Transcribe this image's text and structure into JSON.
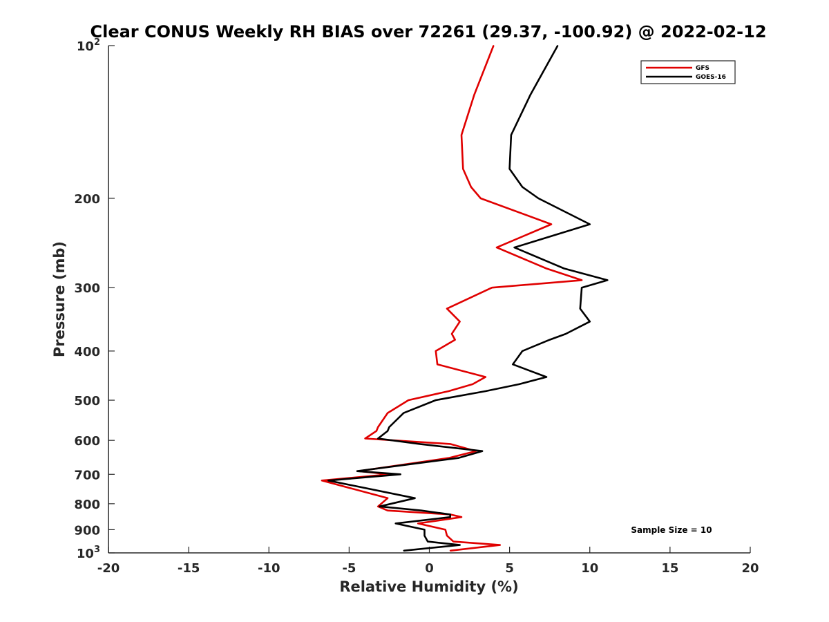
{
  "chart_data": {
    "type": "line",
    "title": "Clear CONUS Weekly RH BIAS over 72261 (29.37, -100.92) @ 2022-02-12",
    "xlabel": "Relative Humidity (%)",
    "ylabel": "Pressure (mb)",
    "xlim": [
      -20,
      20
    ],
    "ylim": [
      100,
      1000
    ],
    "y_scale": "log",
    "y_reversed": true,
    "xticks": [
      -20,
      -15,
      -10,
      -5,
      0,
      5,
      10,
      15,
      20
    ],
    "xtick_labels": [
      "-20",
      "-15",
      "-10",
      "-5",
      "0",
      "5",
      "10",
      "15",
      "20"
    ],
    "yticks": [
      200,
      300,
      400,
      500,
      600,
      700,
      800,
      900
    ],
    "ytick_labels": [
      "200",
      "300",
      "400",
      "500",
      "600",
      "700",
      "800",
      "900"
    ],
    "ytick_top": {
      "base": "10",
      "exp": "2"
    },
    "ytick_bottom": {
      "base": "10",
      "exp": "3"
    },
    "grid": false,
    "legend_position": "top-right",
    "annotation": "Sample Size = 10",
    "series": [
      {
        "name": "GFS",
        "color": "#e00000",
        "points": [
          [
            4.0,
            100
          ],
          [
            2.8,
            125
          ],
          [
            2.0,
            150
          ],
          [
            2.1,
            175
          ],
          [
            2.6,
            190
          ],
          [
            3.2,
            200
          ],
          [
            7.6,
            225
          ],
          [
            4.2,
            250
          ],
          [
            7.3,
            275
          ],
          [
            9.5,
            290
          ],
          [
            3.9,
            300
          ],
          [
            1.1,
            330
          ],
          [
            1.9,
            350
          ],
          [
            1.4,
            370
          ],
          [
            1.6,
            380
          ],
          [
            0.4,
            400
          ],
          [
            0.5,
            425
          ],
          [
            3.5,
            450
          ],
          [
            2.7,
            465
          ],
          [
            1.2,
            480
          ],
          [
            -1.3,
            500
          ],
          [
            -2.6,
            530
          ],
          [
            -3.2,
            565
          ],
          [
            -3.3,
            575
          ],
          [
            -4.0,
            595
          ],
          [
            1.3,
            610
          ],
          [
            2.9,
            630
          ],
          [
            1.2,
            650
          ],
          [
            -4.4,
            690
          ],
          [
            -2.5,
            700
          ],
          [
            -6.7,
            720
          ],
          [
            -2.6,
            780
          ],
          [
            -3.2,
            810
          ],
          [
            -2.6,
            825
          ],
          [
            1.3,
            840
          ],
          [
            2.0,
            850
          ],
          [
            -0.7,
            875
          ],
          [
            1.0,
            900
          ],
          [
            1.1,
            925
          ],
          [
            1.5,
            950
          ],
          [
            4.4,
            965
          ],
          [
            1.3,
            990
          ]
        ]
      },
      {
        "name": "GOES-16",
        "color": "#000000",
        "points": [
          [
            8.0,
            100
          ],
          [
            6.3,
            125
          ],
          [
            5.1,
            150
          ],
          [
            5.0,
            175
          ],
          [
            5.8,
            190
          ],
          [
            6.8,
            200
          ],
          [
            10.0,
            225
          ],
          [
            5.3,
            250
          ],
          [
            8.4,
            275
          ],
          [
            11.1,
            290
          ],
          [
            9.5,
            300
          ],
          [
            9.4,
            330
          ],
          [
            10.0,
            350
          ],
          [
            8.5,
            370
          ],
          [
            7.5,
            380
          ],
          [
            5.8,
            400
          ],
          [
            5.2,
            425
          ],
          [
            7.3,
            450
          ],
          [
            5.6,
            465
          ],
          [
            3.5,
            480
          ],
          [
            0.4,
            500
          ],
          [
            -1.6,
            530
          ],
          [
            -2.5,
            565
          ],
          [
            -2.6,
            575
          ],
          [
            -3.2,
            595
          ],
          [
            -0.6,
            610
          ],
          [
            3.3,
            630
          ],
          [
            1.8,
            650
          ],
          [
            -4.5,
            690
          ],
          [
            -1.8,
            700
          ],
          [
            -6.3,
            720
          ],
          [
            -0.9,
            780
          ],
          [
            -3.1,
            810
          ],
          [
            -0.5,
            825
          ],
          [
            1.3,
            840
          ],
          [
            1.3,
            850
          ],
          [
            -2.1,
            875
          ],
          [
            -0.3,
            900
          ],
          [
            -0.3,
            925
          ],
          [
            -0.1,
            950
          ],
          [
            1.9,
            965
          ],
          [
            -1.6,
            990
          ]
        ]
      }
    ]
  }
}
